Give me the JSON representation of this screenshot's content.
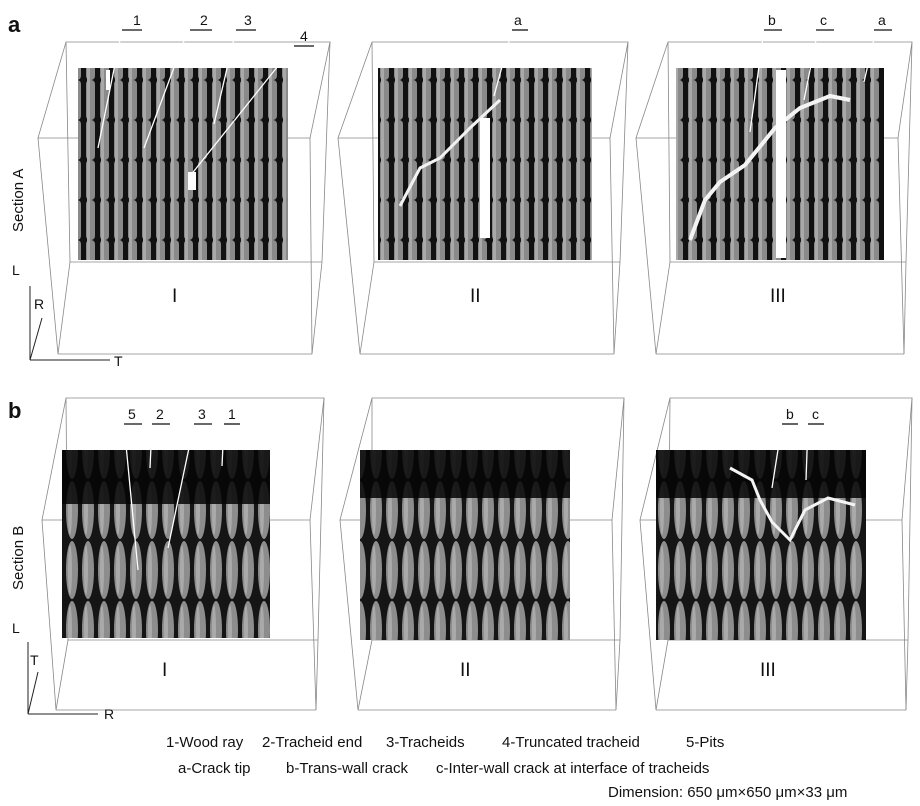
{
  "panels": [
    {
      "letter": "a",
      "section": "Section A",
      "stages": [
        "I",
        "II",
        "III"
      ],
      "axes": {
        "vertical": "L",
        "diagonal": "R",
        "horizontal": "T"
      },
      "callouts_stage1": [
        "1",
        "2",
        "3",
        "4"
      ],
      "callouts_stage2": [
        "a"
      ],
      "callouts_stage3": [
        "b",
        "c",
        "a"
      ]
    },
    {
      "letter": "b",
      "section": "Section B",
      "stages": [
        "I",
        "II",
        "III"
      ],
      "axes": {
        "vertical": "L",
        "diagonal": "T",
        "horizontal": "R"
      },
      "callouts_stage1": [
        "5",
        "2",
        "3",
        "1"
      ],
      "callouts_stage3": [
        "b",
        "c"
      ]
    }
  ],
  "legend": {
    "line1": [
      "1-Wood ray",
      "2-Tracheid end",
      "3-Tracheids",
      "4-Truncated tracheid",
      "5-Pits"
    ],
    "line2": [
      "a-Crack tip",
      "b-Trans-wall crack",
      "c-Inter-wall crack at interface of tracheids"
    ],
    "dimension": "Dimension: 650 μm×650 μm×33 μm"
  }
}
